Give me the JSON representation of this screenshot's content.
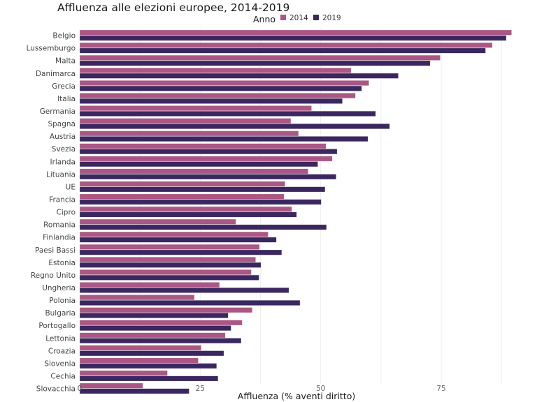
{
  "chart_data": {
    "type": "bar",
    "orientation": "horizontal",
    "title": "Affluenza alle elezioni europee, 2014-2019",
    "xlabel": "Affluenza (% aventi diritto)",
    "ylabel": "",
    "xlim": [
      0,
      90
    ],
    "xticks": [
      0,
      25,
      50,
      75
    ],
    "xtick_labels": [
      "0",
      "25",
      "50",
      "75"
    ],
    "grid": true,
    "legend": {
      "title": "Anno",
      "placement": "top-right"
    },
    "categories": [
      "Belgio",
      "Lussemburgo",
      "Malta",
      "Danimarca",
      "Grecia",
      "Italia",
      "Germania",
      "Spagna",
      "Austria",
      "Svezia",
      "Irlanda",
      "Lituania",
      "UE",
      "Francia",
      "Cipro",
      "Romania",
      "Finlandia",
      "Paesi Bassi",
      "Estonia",
      "Regno Unito",
      "Ungheria",
      "Polonia",
      "Bulgaria",
      "Portogallo",
      "Lettonia",
      "Croazia",
      "Slovenia",
      "Cechia",
      "Slovacchia"
    ],
    "series": [
      {
        "name": "2014",
        "color": "#ab5785",
        "values": [
          89.6,
          85.6,
          74.8,
          56.3,
          60.0,
          57.2,
          48.1,
          43.8,
          45.4,
          51.1,
          52.4,
          47.4,
          42.6,
          42.4,
          44.0,
          32.4,
          39.1,
          37.3,
          36.5,
          35.6,
          29.0,
          23.8,
          35.8,
          33.7,
          30.2,
          25.2,
          24.6,
          18.2,
          13.1
        ]
      },
      {
        "name": "2019",
        "color": "#3a2760",
        "values": [
          88.5,
          84.2,
          72.7,
          66.1,
          58.5,
          54.5,
          61.4,
          64.3,
          59.8,
          53.4,
          49.4,
          53.2,
          50.9,
          50.1,
          45.0,
          51.2,
          40.8,
          41.9,
          37.6,
          37.2,
          43.4,
          45.7,
          30.8,
          31.4,
          33.5,
          29.9,
          28.4,
          28.7,
          22.7
        ]
      }
    ]
  }
}
